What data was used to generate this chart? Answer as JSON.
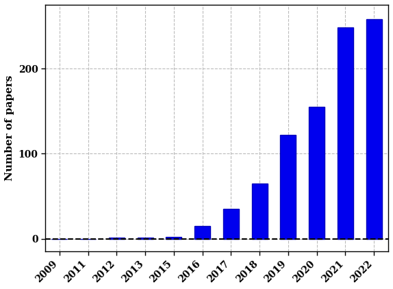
{
  "categories": [
    "2009",
    "2011",
    "2012",
    "2013",
    "2015",
    "2016",
    "2017",
    "2018",
    "2019",
    "2020",
    "2021",
    "2022"
  ],
  "values": [
    0,
    0,
    1,
    1,
    2,
    15,
    35,
    65,
    122,
    155,
    248,
    258
  ],
  "bar_color": "#0000ee",
  "bar_edge_color": "#0000bb",
  "ylabel": "Number of papers",
  "ylim": [
    -15,
    275
  ],
  "yticks": [
    0,
    100,
    200
  ],
  "grid_color": "#bbbbbb",
  "dashed_line_y": 0,
  "dashed_line_color": "black",
  "background_color": "#ffffff",
  "tick_labelsize": 10,
  "ylabel_fontsize": 11,
  "bar_width": 0.55
}
